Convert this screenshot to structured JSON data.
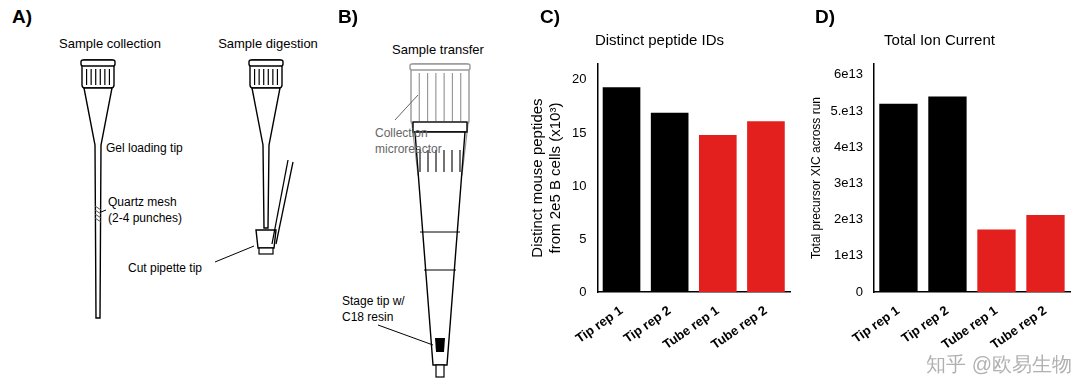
{
  "panels": {
    "A": {
      "letter": "A)",
      "left_caption": "Sample collection",
      "right_caption": "Sample digestion",
      "tip_label": "Gel loading tip",
      "mesh_label": [
        "Quartz mesh",
        "(2-4 punches)"
      ],
      "cut_label": "Cut pipette tip"
    },
    "B": {
      "letter": "B)",
      "caption": "Sample transfer",
      "collection_label": [
        "Collection",
        "microreactor"
      ],
      "stage_label": [
        "Stage tip w/",
        "C18 resin"
      ]
    },
    "C": {
      "letter": "C)"
    },
    "D": {
      "letter": "D)"
    }
  },
  "watermark": "知乎 @欧易生物",
  "chart_data": [
    {
      "type": "bar",
      "title": "Distinct peptide IDs",
      "y_label": [
        "Distinct mouse peptides",
        "from 2e5 B cells (x10³)"
      ],
      "categories": [
        "Tip rep 1",
        "Tip rep 2",
        "Tube rep 1",
        "Tube rep 2"
      ],
      "values": [
        19.3,
        16.9,
        14.8,
        16.1
      ],
      "colors": [
        "#000000",
        "#000000",
        "#e3201e",
        "#e3201e"
      ],
      "ylim": [
        0,
        21.5
      ],
      "yticks": [
        0,
        5,
        10,
        15,
        20
      ],
      "grid": false
    },
    {
      "type": "bar",
      "title": "Total Ion Current",
      "y_label": "Total precursor XIC across run",
      "categories": [
        "Tip rep 1",
        "Tip rep 2",
        "Tube rep 1",
        "Tube rep 2"
      ],
      "values": [
        52000000000000,
        54000000000000,
        17300000000000,
        21300000000000
      ],
      "colors": [
        "#000000",
        "#000000",
        "#e3201e",
        "#e3201e"
      ],
      "ylim": [
        0,
        63000000000000
      ],
      "yticks": [
        0,
        {
          "value": 10000000000000,
          "label": "1e13"
        },
        {
          "value": 20000000000000,
          "label": "2e13"
        },
        {
          "value": 30000000000000,
          "label": "3e13"
        },
        {
          "value": 40000000000000,
          "label": "4e13"
        },
        {
          "value": 50000000000000,
          "label": "5.e13"
        },
        {
          "value": 60000000000000,
          "label": "6e13"
        }
      ],
      "grid": false
    }
  ]
}
